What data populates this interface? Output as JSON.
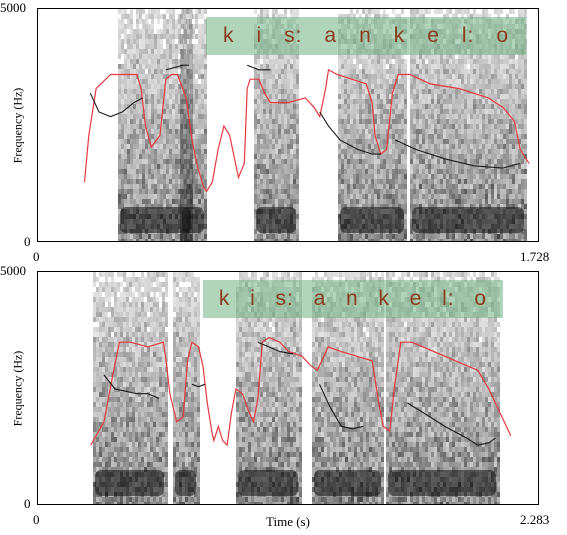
{
  "chart_data": [
    {
      "type": "line",
      "title": "",
      "xlabel": "",
      "ylabel": "Frequency (Hz)",
      "xlim": [
        0,
        1.728
      ],
      "ylim": [
        0,
        5000
      ],
      "x_tick_labels": [
        "0",
        "1.728"
      ],
      "y_tick_labels": [
        "0",
        "5000"
      ],
      "segments": [
        "k",
        "i",
        "s:",
        "a",
        "n",
        "k",
        "e",
        "l:",
        "o"
      ],
      "series": [
        {
          "color": "#e8383d",
          "points": [
            [
              0.16,
              1300
            ],
            [
              0.175,
              2300
            ],
            [
              0.2,
              3300
            ],
            [
              0.25,
              3600
            ],
            [
              0.3,
              3600
            ],
            [
              0.34,
              3600
            ],
            [
              0.355,
              3300
            ],
            [
              0.37,
              2500
            ],
            [
              0.39,
              2050
            ],
            [
              0.42,
              2300
            ],
            [
              0.44,
              3500
            ],
            [
              0.46,
              3600
            ],
            [
              0.48,
              3600
            ],
            [
              0.51,
              3100
            ],
            [
              0.53,
              2200
            ],
            [
              0.55,
              1600
            ],
            [
              0.57,
              1200
            ],
            [
              0.58,
              1100
            ],
            [
              0.6,
              1300
            ],
            [
              0.62,
              2000
            ],
            [
              0.64,
              2500
            ],
            [
              0.66,
              2300
            ],
            [
              0.68,
              1700
            ],
            [
              0.69,
              1400
            ],
            [
              0.71,
              1700
            ],
            [
              0.72,
              3300
            ],
            [
              0.73,
              3500
            ],
            [
              0.76,
              3500
            ],
            [
              0.78,
              3200
            ],
            [
              0.8,
              3000
            ],
            [
              0.86,
              3000
            ],
            [
              0.92,
              3100
            ],
            [
              0.95,
              2900
            ],
            [
              0.97,
              2700
            ],
            [
              0.99,
              3300
            ],
            [
              1.0,
              3700
            ],
            [
              1.03,
              3600
            ],
            [
              1.08,
              3500
            ],
            [
              1.13,
              3400
            ],
            [
              1.15,
              3000
            ],
            [
              1.16,
              2300
            ],
            [
              1.18,
              1900
            ],
            [
              1.2,
              2000
            ],
            [
              1.22,
              3200
            ],
            [
              1.24,
              3600
            ],
            [
              1.28,
              3600
            ],
            [
              1.35,
              3400
            ],
            [
              1.45,
              3300
            ],
            [
              1.55,
              3100
            ],
            [
              1.6,
              2900
            ],
            [
              1.64,
              2600
            ],
            [
              1.66,
              2000
            ],
            [
              1.69,
              1700
            ]
          ]
        },
        {
          "color": "#1a1a1a",
          "points": [
            [
              0.18,
              3200
            ],
            [
              0.21,
              2800
            ],
            [
              0.25,
              2700
            ],
            [
              0.29,
              2800
            ],
            [
              0.33,
              3000
            ],
            [
              0.36,
              3100
            ]
          ]
        },
        {
          "color": "#1a1a1a",
          "points": [
            [
              0.44,
              3700
            ],
            [
              0.47,
              3750
            ],
            [
              0.5,
              3800
            ],
            [
              0.52,
              3800
            ]
          ]
        },
        {
          "color": "#1a1a1a",
          "points": [
            [
              0.72,
              3800
            ],
            [
              0.76,
              3700
            ],
            [
              0.8,
              3700
            ]
          ]
        },
        {
          "color": "#1a1a1a",
          "points": [
            [
              0.97,
              2800
            ],
            [
              1.0,
              2500
            ],
            [
              1.04,
              2200
            ],
            [
              1.1,
              2000
            ],
            [
              1.15,
              1900
            ],
            [
              1.18,
              1900
            ]
          ]
        },
        {
          "color": "#1a1a1a",
          "points": [
            [
              1.23,
              2200
            ],
            [
              1.3,
              2000
            ],
            [
              1.4,
              1800
            ],
            [
              1.5,
              1650
            ],
            [
              1.6,
              1600
            ],
            [
              1.66,
              1700
            ]
          ]
        }
      ]
    },
    {
      "type": "line",
      "title": "",
      "xlabel": "Time (s)",
      "ylabel": "Frequency (Hz)",
      "xlim": [
        0,
        2.283
      ],
      "ylim": [
        0,
        5000
      ],
      "x_tick_labels": [
        "0",
        "2.283"
      ],
      "y_tick_labels": [
        "0",
        "5000"
      ],
      "segments": [
        "k",
        "i",
        "s:",
        "a",
        "n",
        "k",
        "e",
        "l:",
        "o"
      ],
      "series": [
        {
          "color": "#e8383d",
          "points": [
            [
              0.24,
              1300
            ],
            [
              0.3,
              1800
            ],
            [
              0.34,
              2800
            ],
            [
              0.37,
              3500
            ],
            [
              0.42,
              3500
            ],
            [
              0.5,
              3400
            ],
            [
              0.57,
              3500
            ],
            [
              0.58,
              3200
            ],
            [
              0.6,
              2400
            ],
            [
              0.63,
              1800
            ],
            [
              0.66,
              1900
            ],
            [
              0.68,
              3100
            ],
            [
              0.7,
              3500
            ],
            [
              0.73,
              3400
            ],
            [
              0.75,
              3000
            ],
            [
              0.77,
              2200
            ],
            [
              0.79,
              1600
            ],
            [
              0.8,
              1400
            ],
            [
              0.82,
              1700
            ],
            [
              0.84,
              1400
            ],
            [
              0.86,
              1300
            ],
            [
              0.88,
              2000
            ],
            [
              0.9,
              2500
            ],
            [
              0.93,
              2400
            ],
            [
              0.96,
              2000
            ],
            [
              0.98,
              1800
            ],
            [
              1.0,
              2300
            ],
            [
              1.02,
              3500
            ],
            [
              1.05,
              3600
            ],
            [
              1.1,
              3500
            ],
            [
              1.14,
              3300
            ],
            [
              1.2,
              3200
            ],
            [
              1.24,
              3000
            ],
            [
              1.27,
              2900
            ],
            [
              1.32,
              3400
            ],
            [
              1.38,
              3300
            ],
            [
              1.45,
              3200
            ],
            [
              1.52,
              3100
            ],
            [
              1.55,
              2200
            ],
            [
              1.57,
              1700
            ],
            [
              1.6,
              1600
            ],
            [
              1.62,
              2500
            ],
            [
              1.65,
              3500
            ],
            [
              1.7,
              3500
            ],
            [
              1.8,
              3300
            ],
            [
              1.9,
              3100
            ],
            [
              2.0,
              2900
            ],
            [
              2.05,
              2500
            ],
            [
              2.1,
              2000
            ],
            [
              2.15,
              1500
            ]
          ]
        },
        {
          "color": "#1a1a1a",
          "points": [
            [
              0.3,
              2800
            ],
            [
              0.35,
              2500
            ],
            [
              0.4,
              2450
            ],
            [
              0.45,
              2400
            ],
            [
              0.5,
              2400
            ],
            [
              0.55,
              2300
            ]
          ]
        },
        {
          "color": "#1a1a1a",
          "points": [
            [
              0.7,
              2600
            ],
            [
              0.73,
              2550
            ],
            [
              0.76,
              2600
            ]
          ]
        },
        {
          "color": "#1a1a1a",
          "points": [
            [
              1.0,
              3500
            ],
            [
              1.05,
              3400
            ],
            [
              1.1,
              3300
            ],
            [
              1.16,
              3250
            ]
          ]
        },
        {
          "color": "#1a1a1a",
          "points": [
            [
              1.28,
              2600
            ],
            [
              1.33,
              2100
            ],
            [
              1.38,
              1700
            ],
            [
              1.43,
              1650
            ],
            [
              1.48,
              1700
            ]
          ]
        },
        {
          "color": "#1a1a1a",
          "points": [
            [
              1.68,
              2200
            ],
            [
              1.75,
              2000
            ],
            [
              1.85,
              1700
            ],
            [
              1.95,
              1450
            ],
            [
              2.0,
              1300
            ],
            [
              2.05,
              1350
            ],
            [
              2.08,
              1450
            ]
          ]
        }
      ]
    }
  ],
  "colors": {
    "formant_f0_line": "#e8383d",
    "formant_track": "#1a1a1a",
    "segment_box": "#70b282",
    "segment_text": "#8b3a1e"
  }
}
